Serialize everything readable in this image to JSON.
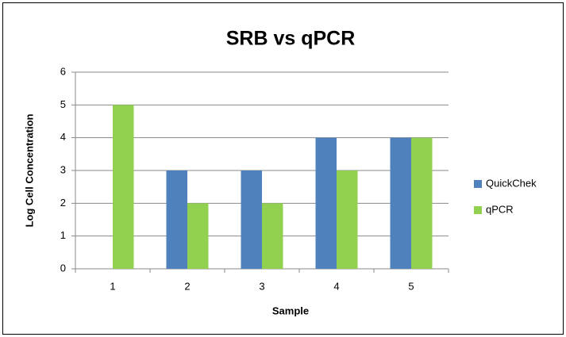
{
  "chart_data": {
    "type": "bar",
    "title": "SRB vs qPCR",
    "x_label": "Sample",
    "y_label": "Log Cell Concentration",
    "categories": [
      "1",
      "2",
      "3",
      "4",
      "5"
    ],
    "series": [
      {
        "name": "QuickChek",
        "color": "#4f81bd",
        "values": [
          0,
          3,
          3,
          4,
          4
        ]
      },
      {
        "name": "qPCR",
        "color": "#92d050",
        "values": [
          5,
          2,
          2,
          3,
          4
        ]
      }
    ],
    "ylim": [
      0,
      6
    ],
    "yticks": [
      0,
      1,
      2,
      3,
      4,
      5,
      6
    ],
    "grid": true,
    "legend": "right"
  }
}
